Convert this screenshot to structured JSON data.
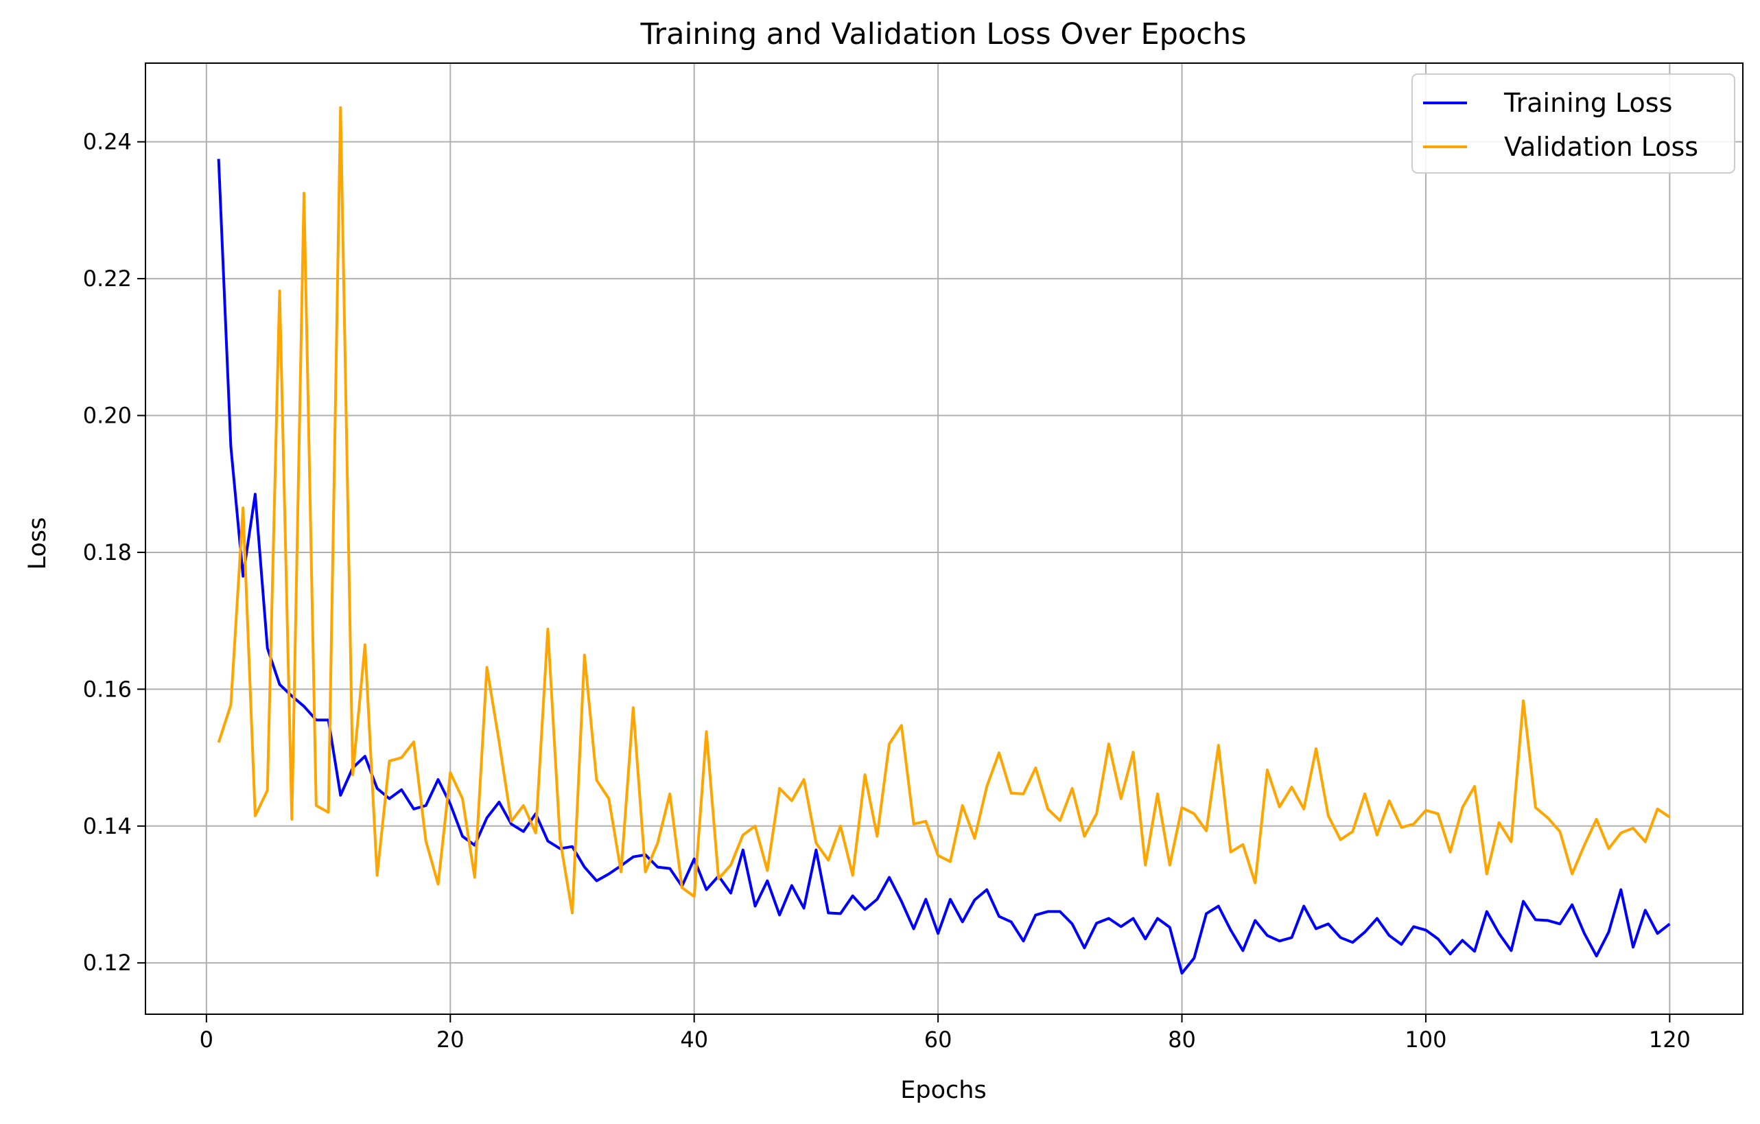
{
  "chart_data": {
    "type": "line",
    "title": "Training and Validation Loss Over Epochs",
    "xlabel": "Epochs",
    "ylabel": "Loss",
    "xlim": [
      -5,
      126
    ],
    "ylim": [
      0.1125,
      0.2515
    ],
    "xticks": [
      0,
      20,
      40,
      60,
      80,
      100,
      120
    ],
    "xtick_labels": [
      "0",
      "20",
      "40",
      "60",
      "80",
      "100",
      "120"
    ],
    "yticks": [
      0.12,
      0.14,
      0.16,
      0.18,
      0.2,
      0.22,
      0.24
    ],
    "ytick_labels": [
      "0.12",
      "0.14",
      "0.16",
      "0.18",
      "0.20",
      "0.22",
      "0.24"
    ],
    "grid": true,
    "legend": "top-right",
    "x": [
      1,
      2,
      3,
      4,
      5,
      6,
      7,
      8,
      9,
      10,
      11,
      12,
      13,
      14,
      15,
      16,
      17,
      18,
      19,
      20,
      21,
      22,
      23,
      24,
      25,
      26,
      27,
      28,
      29,
      30,
      31,
      32,
      33,
      34,
      35,
      36,
      37,
      38,
      39,
      40,
      41,
      42,
      43,
      44,
      45,
      46,
      47,
      48,
      49,
      50,
      51,
      52,
      53,
      54,
      55,
      56,
      57,
      58,
      59,
      60,
      61,
      62,
      63,
      64,
      65,
      66,
      67,
      68,
      69,
      70,
      71,
      72,
      73,
      74,
      75,
      76,
      77,
      78,
      79,
      80,
      81,
      82,
      83,
      84,
      85,
      86,
      87,
      88,
      89,
      90,
      91,
      92,
      93,
      94,
      95,
      96,
      97,
      98,
      99,
      100,
      101,
      102,
      103,
      104,
      105,
      106,
      107,
      108,
      109,
      110,
      111,
      112,
      113,
      114,
      115,
      116,
      117,
      118,
      119,
      120
    ],
    "series": [
      {
        "name": "Training Loss",
        "color": "#0000ff",
        "values": [
          0.2375,
          0.1955,
          0.1765,
          0.1885,
          0.166,
          0.1607,
          0.159,
          0.1575,
          0.1555,
          0.1555,
          0.1445,
          0.1485,
          0.1502,
          0.1455,
          0.144,
          0.1453,
          0.1425,
          0.143,
          0.1468,
          0.1432,
          0.1385,
          0.1372,
          0.1412,
          0.1435,
          0.1403,
          0.1392,
          0.1418,
          0.1378,
          0.1367,
          0.137,
          0.134,
          0.132,
          0.133,
          0.1342,
          0.1355,
          0.1358,
          0.134,
          0.1338,
          0.1312,
          0.1352,
          0.1307,
          0.1327,
          0.1302,
          0.1365,
          0.1283,
          0.132,
          0.127,
          0.1313,
          0.128,
          0.1365,
          0.1273,
          0.1272,
          0.1298,
          0.1278,
          0.1293,
          0.1325,
          0.129,
          0.125,
          0.1293,
          0.1243,
          0.1293,
          0.126,
          0.1292,
          0.1307,
          0.1268,
          0.126,
          0.1232,
          0.127,
          0.1275,
          0.1275,
          0.1257,
          0.1222,
          0.1258,
          0.1265,
          0.1253,
          0.1265,
          0.1235,
          0.1265,
          0.1252,
          0.1185,
          0.1207,
          0.1272,
          0.1283,
          0.1248,
          0.1218,
          0.1262,
          0.124,
          0.1232,
          0.1237,
          0.1283,
          0.125,
          0.1257,
          0.1237,
          0.123,
          0.1245,
          0.1265,
          0.124,
          0.1227,
          0.1253,
          0.1248,
          0.1235,
          0.1213,
          0.1233,
          0.1217,
          0.1275,
          0.1243,
          0.1218,
          0.129,
          0.1263,
          0.1262,
          0.1257,
          0.1285,
          0.1243,
          0.121,
          0.1245,
          0.1307,
          0.1223,
          0.1277,
          0.1243,
          0.1257
        ]
      },
      {
        "name": "Validation Loss",
        "color": "#ffa500",
        "values": [
          0.1522,
          0.1577,
          0.1865,
          0.1415,
          0.1452,
          0.2182,
          0.141,
          0.2325,
          0.143,
          0.142,
          0.245,
          0.1475,
          0.1665,
          0.1328,
          0.1495,
          0.15,
          0.1523,
          0.1378,
          0.1315,
          0.1478,
          0.144,
          0.1325,
          0.1632,
          0.1523,
          0.1407,
          0.143,
          0.139,
          0.1688,
          0.138,
          0.1273,
          0.165,
          0.1467,
          0.144,
          0.1333,
          0.1573,
          0.1333,
          0.1375,
          0.1447,
          0.131,
          0.1297,
          0.1538,
          0.1323,
          0.1343,
          0.1387,
          0.14,
          0.1335,
          0.1455,
          0.1437,
          0.1468,
          0.1375,
          0.135,
          0.14,
          0.1328,
          0.1475,
          0.1385,
          0.152,
          0.1547,
          0.1403,
          0.1407,
          0.1357,
          0.1348,
          0.143,
          0.1382,
          0.1458,
          0.1507,
          0.1448,
          0.1447,
          0.1485,
          0.1425,
          0.1408,
          0.1455,
          0.1385,
          0.1418,
          0.152,
          0.144,
          0.1508,
          0.1343,
          0.1447,
          0.1343,
          0.1427,
          0.1418,
          0.1393,
          0.1518,
          0.1362,
          0.1373,
          0.1317,
          0.1482,
          0.1428,
          0.1457,
          0.1425,
          0.1513,
          0.1415,
          0.138,
          0.1392,
          0.1447,
          0.1387,
          0.1437,
          0.1398,
          0.1403,
          0.1423,
          0.1418,
          0.1362,
          0.1427,
          0.1458,
          0.133,
          0.1405,
          0.1377,
          0.1583,
          0.1427,
          0.1412,
          0.1392,
          0.133,
          0.1372,
          0.141,
          0.1367,
          0.139,
          0.1397,
          0.1377,
          0.1425,
          0.1413
        ]
      }
    ]
  }
}
